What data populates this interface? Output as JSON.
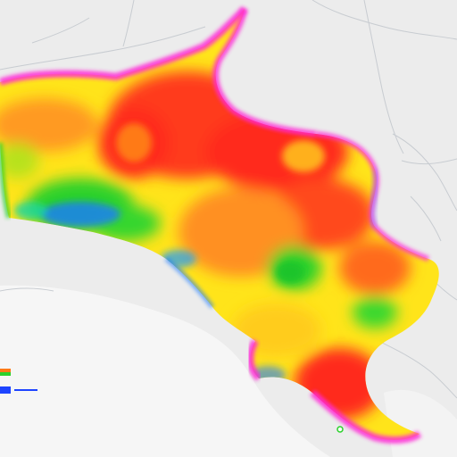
{
  "map": {
    "colors": {
      "land": "#e7e7e7",
      "water": "#f1f1f1",
      "border": "#c9cdd2",
      "red": "#ff2a1e",
      "orange": "#ff7a18",
      "yellow": "#ffe41a",
      "green": "#27d62a",
      "blue": "#1d7bff",
      "magenta": "#ff1fd6"
    }
  },
  "legend": {
    "title": "",
    "items": [
      {
        "label": "",
        "color_top": "#ff7a18",
        "color_bottom": "#2bd12b"
      },
      {
        "label": "",
        "color_top": "#1e44ff",
        "color_bottom": "#1e44ff"
      },
      {
        "label": "",
        "color_top": "#8a9aa6",
        "color_bottom": "#8a9aa6"
      }
    ]
  }
}
